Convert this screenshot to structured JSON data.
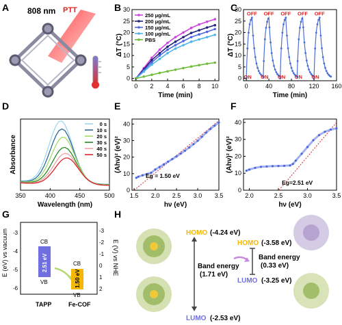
{
  "colors": {
    "p250": "#cc44dd",
    "p200": "#22237a",
    "p150": "#4a66e0",
    "p100": "#4fb3e8",
    "pbs": "#6fbb3a",
    "cycle": "#4a6ed6",
    "fit": "#d62728",
    "red": "#e02020",
    "homo": "#f5b800",
    "lumo": "#6f6fe0",
    "tapp_box": "#6f6fe0",
    "fecof_box": "#f5b800"
  },
  "panels": {
    "A": {
      "letter": "A",
      "laser": "808 nm",
      "ptt": "PTT"
    },
    "B": {
      "letter": "B"
    },
    "C": {
      "letter": "C"
    },
    "D": {
      "letter": "D"
    },
    "E": {
      "letter": "E"
    },
    "F": {
      "letter": "F"
    },
    "G": {
      "letter": "G",
      "cb": "CB",
      "vb": "VB",
      "gap1": "2.51 eV",
      "gap2": "1.50 eV",
      "xcat1": "TAPP",
      "xcat2": "Fe-COF",
      "ylabel_left": "E (eV) vs vacuum",
      "ylabel_right": "E (V) vs NHE",
      "left_ticks": [
        "-3",
        "-4",
        "-5",
        "-6"
      ],
      "right_ticks": [
        "-3",
        "-2",
        "-1",
        "0",
        "1",
        "2"
      ]
    },
    "H": {
      "letter": "H",
      "homo1": "HOMO",
      "homo1_val": "(-4.24 eV)",
      "lumo1": "LUMO",
      "lumo1_val": "(-2.53 eV)",
      "band1": "Band energy",
      "band1_val": "(1.71 eV)",
      "homo2": "HOMO",
      "homo2_val": "(-3.58 eV)",
      "lumo2": "LUMO",
      "lumo2_val": "(-3.25 eV)",
      "band2": "Band energy",
      "band2_val": "(0.33 eV)"
    }
  },
  "chart_data": [
    {
      "id": "B",
      "type": "line",
      "xlabel": "Time (min)",
      "ylabel": "ΔT (°C)",
      "xlim": [
        -0.5,
        10.5
      ],
      "ylim": [
        -1,
        30
      ],
      "xticks": [
        "0",
        "2",
        "4",
        "6",
        "8",
        "10"
      ],
      "yticks": [
        "0",
        "5",
        "10",
        "15",
        "20",
        "25",
        "30"
      ],
      "legend": "top-left",
      "series": [
        {
          "name": "250 μg/mL",
          "x": [
            0,
            1,
            2,
            3,
            4,
            5,
            6,
            7,
            8,
            9,
            10
          ],
          "y": [
            0,
            4.5,
            9,
            12.5,
            15.5,
            18,
            20,
            22,
            23.5,
            24.7,
            25.8
          ]
        },
        {
          "name": "200 μg/mL",
          "x": [
            0,
            1,
            2,
            3,
            4,
            5,
            6,
            7,
            8,
            9,
            10
          ],
          "y": [
            0,
            4,
            8,
            11,
            13.8,
            16,
            18,
            19.8,
            21,
            22.2,
            23.2
          ]
        },
        {
          "name": "150 μg/mL",
          "x": [
            0,
            1,
            2,
            3,
            4,
            5,
            6,
            7,
            8,
            9,
            10
          ],
          "y": [
            0,
            3.5,
            7,
            10,
            12.5,
            14.5,
            16.3,
            18,
            19.2,
            20.3,
            21.5
          ]
        },
        {
          "name": "100 μg/mL",
          "x": [
            0,
            1,
            2,
            3,
            4,
            5,
            6,
            7,
            8,
            9,
            10
          ],
          "y": [
            0,
            3,
            6,
            8.5,
            11,
            13,
            14.5,
            16,
            17,
            18,
            19
          ]
        },
        {
          "name": "PBS",
          "x": [
            0,
            1,
            2,
            3,
            4,
            5,
            6,
            7,
            8,
            9,
            10
          ],
          "y": [
            0,
            0.8,
            1.6,
            2.4,
            3.1,
            3.8,
            4.5,
            5.2,
            5.8,
            6.4,
            6.9
          ]
        }
      ]
    },
    {
      "id": "C",
      "type": "line",
      "xlabel": "Time (min)",
      "ylabel": "ΔT (°C)",
      "xlim": [
        -5,
        160
      ],
      "ylim": [
        -1,
        30
      ],
      "xticks": [
        "0",
        "40",
        "80",
        "120",
        "160"
      ],
      "yticks": [
        "0",
        "5",
        "10",
        "15",
        "20",
        "25",
        "30"
      ],
      "on_label": "ON",
      "off_label": "OFF",
      "on_times": [
        0,
        30,
        60,
        90,
        120
      ],
      "off_times": [
        10,
        40,
        70,
        100,
        130
      ],
      "peak": 26.5,
      "end_time": 150
    },
    {
      "id": "D",
      "type": "line",
      "xlabel": "Wavelength (nm)",
      "ylabel": "Absorbance",
      "xlim": [
        350,
        500
      ],
      "ylim": [
        0,
        1
      ],
      "xticks": [
        "350",
        "400",
        "450",
        "500"
      ],
      "legend": "top-right",
      "series": [
        {
          "name": "0 s",
          "color": "#9fd6ee",
          "peak": 0.88
        },
        {
          "name": "10 s",
          "color": "#2a6aa0",
          "peak": 0.77
        },
        {
          "name": "20 s",
          "color": "#a6d96a",
          "peak": 0.66
        },
        {
          "name": "30 s",
          "color": "#228b22",
          "peak": 0.52
        },
        {
          "name": "40 s",
          "color": "#f2a0a8",
          "peak": 0.44
        },
        {
          "name": "50 s",
          "color": "#d62728",
          "peak": 0.38
        }
      ]
    },
    {
      "id": "E",
      "type": "line",
      "xlabel": "hν (eV)",
      "ylabel": "(Ahν)² (eV)²",
      "xlim": [
        1.45,
        3.5
      ],
      "ylim": [
        0,
        43
      ],
      "xticks": [
        "1.5",
        "2.0",
        "2.5",
        "3.0",
        "3.5"
      ],
      "yticks": [
        "0",
        "10",
        "20",
        "30",
        "40"
      ],
      "annotation": "Eg = 1.50 eV",
      "x": [
        1.55,
        1.6,
        1.7,
        1.8,
        1.9,
        2.0,
        2.1,
        2.2,
        2.3,
        2.4,
        2.5,
        2.6,
        2.7,
        2.8,
        2.9,
        3.0,
        3.1,
        3.2,
        3.3,
        3.4,
        3.5
      ],
      "y": [
        7.5,
        8.2,
        9.0,
        9.8,
        10.5,
        12.5,
        14.0,
        15.6,
        17.2,
        18.8,
        20.4,
        22.1,
        23.9,
        25.8,
        27.8,
        29.9,
        32.3,
        34.8,
        37.0,
        39.0,
        41.0
      ],
      "fit": {
        "x": [
          1.5,
          3.5
        ],
        "y": [
          0,
          42
        ]
      }
    },
    {
      "id": "F",
      "type": "line",
      "xlabel": "hν (eV)",
      "ylabel": "(Ahν)² (eV)²",
      "xlim": [
        1.9,
        3.5
      ],
      "ylim": [
        0,
        42
      ],
      "xticks": [
        "2.0",
        "2.5",
        "3.0",
        "3.5"
      ],
      "yticks": [
        "0",
        "10",
        "20",
        "30",
        "40"
      ],
      "annotation": "Eg=2.51 eV",
      "x": [
        1.95,
        2.0,
        2.1,
        2.2,
        2.3,
        2.4,
        2.5,
        2.6,
        2.7,
        2.75,
        2.8,
        2.9,
        3.0,
        3.1,
        3.2,
        3.3,
        3.4,
        3.5
      ],
      "y": [
        11.5,
        12.2,
        13.2,
        13.8,
        14.0,
        14.2,
        14.3,
        14.4,
        14.6,
        15.5,
        17.5,
        21.5,
        25.5,
        29.5,
        32.5,
        34.5,
        35.8,
        36.5
      ],
      "fit": {
        "x": [
          2.51,
          3.5
        ],
        "y": [
          0,
          40
        ]
      }
    }
  ]
}
